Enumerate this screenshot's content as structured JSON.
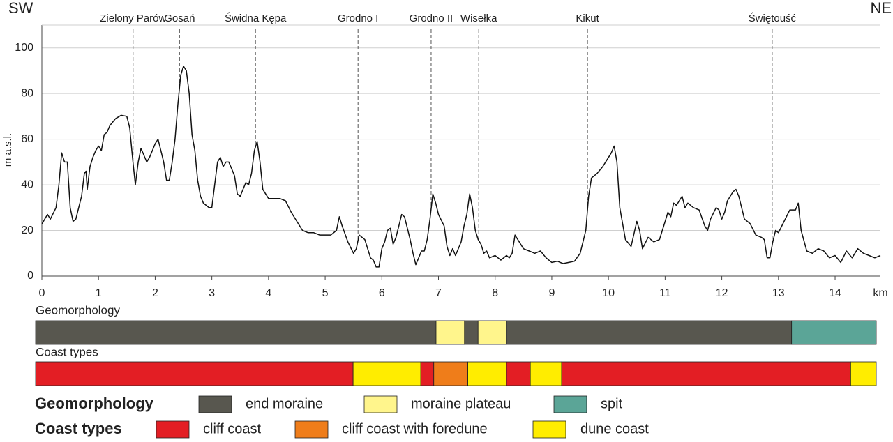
{
  "chart_data": {
    "type": "line",
    "corner_left": "SW",
    "corner_right": "NE",
    "y_label": "m a.s.l.",
    "x_label": "km",
    "xlim": [
      0,
      14.8
    ],
    "ylim": [
      0,
      110
    ],
    "xticks": [
      0,
      1,
      2,
      3,
      4,
      5,
      6,
      7,
      8,
      9,
      10,
      11,
      12,
      13,
      14
    ],
    "yticks": [
      0,
      20,
      40,
      60,
      80,
      100
    ],
    "grid": true,
    "color": "#111111",
    "x": [
      0,
      0.05,
      0.1,
      0.15,
      0.25,
      0.3,
      0.35,
      0.4,
      0.45,
      0.5,
      0.55,
      0.6,
      0.7,
      0.75,
      0.78,
      0.8,
      0.85,
      0.9,
      0.95,
      1.0,
      1.05,
      1.1,
      1.15,
      1.2,
      1.3,
      1.4,
      1.5,
      1.55,
      1.6,
      1.65,
      1.7,
      1.75,
      1.8,
      1.85,
      1.9,
      1.95,
      2.0,
      2.05,
      2.1,
      2.15,
      2.2,
      2.25,
      2.3,
      2.35,
      2.4,
      2.45,
      2.5,
      2.55,
      2.6,
      2.65,
      2.7,
      2.75,
      2.8,
      2.85,
      2.9,
      2.95,
      3.0,
      3.05,
      3.1,
      3.15,
      3.2,
      3.25,
      3.3,
      3.35,
      3.4,
      3.45,
      3.5,
      3.55,
      3.6,
      3.65,
      3.7,
      3.75,
      3.8,
      3.85,
      3.9,
      3.95,
      4.0,
      4.1,
      4.2,
      4.3,
      4.4,
      4.5,
      4.6,
      4.7,
      4.8,
      4.9,
      5.0,
      5.1,
      5.2,
      5.25,
      5.3,
      5.4,
      5.5,
      5.55,
      5.6,
      5.7,
      5.8,
      5.85,
      5.9,
      5.95,
      6.0,
      6.05,
      6.1,
      6.15,
      6.2,
      6.25,
      6.3,
      6.35,
      6.4,
      6.5,
      6.55,
      6.6,
      6.65,
      6.7,
      6.75,
      6.8,
      6.85,
      6.9,
      6.95,
      7.0,
      7.1,
      7.15,
      7.2,
      7.25,
      7.3,
      7.4,
      7.45,
      7.5,
      7.55,
      7.6,
      7.65,
      7.7,
      7.75,
      7.8,
      7.85,
      7.9,
      8.0,
      8.1,
      8.2,
      8.25,
      8.3,
      8.35,
      8.4,
      8.5,
      8.6,
      8.7,
      8.8,
      8.9,
      9.0,
      9.1,
      9.15,
      9.2,
      9.3,
      9.4,
      9.5,
      9.6,
      9.65,
      9.7,
      9.8,
      9.9,
      10.0,
      10.05,
      10.1,
      10.15,
      10.2,
      10.3,
      10.4,
      10.5,
      10.55,
      10.6,
      10.7,
      10.8,
      10.9,
      11.0,
      11.05,
      11.1,
      11.15,
      11.2,
      11.3,
      11.35,
      11.4,
      11.5,
      11.6,
      11.7,
      11.75,
      11.8,
      11.9,
      11.95,
      12.0,
      12.05,
      12.1,
      12.2,
      12.25,
      12.3,
      12.4,
      12.5,
      12.6,
      12.7,
      12.75,
      12.8,
      12.85,
      12.9,
      12.95,
      13.0,
      13.1,
      13.2,
      13.3,
      13.35,
      13.4,
      13.5,
      13.6,
      13.7,
      13.8,
      13.9,
      14.0,
      14.1,
      14.2,
      14.3,
      14.4,
      14.5,
      14.6,
      14.7,
      14.8
    ],
    "values": [
      22.7,
      25,
      27,
      25,
      30,
      40,
      54,
      50,
      50,
      30,
      24,
      25,
      35,
      45,
      46,
      38,
      48,
      52,
      55,
      57,
      55,
      62,
      63,
      66,
      69,
      70.5,
      70,
      65,
      52,
      40,
      50,
      56,
      53,
      50,
      52,
      55,
      58,
      60,
      55,
      50,
      42,
      42,
      50,
      60,
      75,
      88,
      92,
      90,
      80,
      62,
      55,
      42,
      35,
      32,
      31,
      30,
      30,
      40,
      50,
      52,
      48,
      50,
      50,
      47,
      44,
      36,
      35,
      38,
      41,
      40,
      45,
      55,
      59,
      50,
      38,
      36,
      34,
      34,
      34,
      33,
      28,
      24,
      20,
      19,
      19,
      18,
      18,
      18,
      20,
      26,
      22,
      15,
      10,
      12,
      18,
      16,
      8,
      7,
      4,
      4,
      12,
      15,
      20,
      21,
      14,
      17,
      22,
      27,
      26,
      16,
      10,
      5,
      8,
      11,
      11,
      16,
      25,
      36,
      32,
      27,
      22,
      13,
      9,
      12,
      9,
      15,
      22,
      27,
      36,
      30,
      20,
      16,
      14,
      10,
      11,
      8,
      9,
      7,
      9,
      8,
      10,
      18,
      16,
      12,
      11,
      10,
      11,
      8,
      6,
      6.5,
      6,
      5.5,
      6,
      6.5,
      10,
      20,
      35,
      43,
      45,
      48,
      52,
      54,
      57,
      50,
      30,
      16,
      13,
      24,
      20,
      12,
      17,
      15,
      16,
      24,
      28,
      26,
      32,
      31,
      35,
      30,
      32,
      30,
      29,
      22,
      20,
      25,
      30,
      29,
      25,
      28,
      33,
      37,
      38,
      35,
      25,
      23,
      18,
      17,
      16,
      8,
      8,
      15,
      20,
      19,
      24,
      29,
      29,
      32,
      20,
      11,
      10,
      12,
      11,
      8,
      9,
      6,
      11,
      8,
      12,
      10,
      9,
      8,
      9
    ],
    "annotations": [
      {
        "label": "Zielony Parów",
        "x": 1.61
      },
      {
        "label": "Gosań",
        "x": 2.43
      },
      {
        "label": "Świdna Kępa",
        "x": 3.77
      },
      {
        "label": "Grodno I",
        "x": 5.58
      },
      {
        "label": "Grodno II",
        "x": 6.87
      },
      {
        "label": "Wisełka",
        "x": 7.71
      },
      {
        "label": "Kikut",
        "x": 9.63
      },
      {
        "label": "Świętouść",
        "x": 12.89
      }
    ],
    "bands": [
      {
        "title": "Geomorphology",
        "legend_title": "Geomorphology",
        "classes": [
          {
            "name": "end moraine",
            "color": "#58574f",
            "segments": [
              [
                0,
                7.05
              ],
              [
                7.55,
                7.79
              ],
              [
                8.29,
                13.31
              ]
            ]
          },
          {
            "name": "moraine plateau",
            "color": "#fff58c",
            "segments": [
              [
                7.05,
                7.55
              ],
              [
                7.79,
                8.29
              ]
            ]
          },
          {
            "name": "spit",
            "color": "#5ba597",
            "segments": [
              [
                13.31,
                14.8
              ]
            ]
          }
        ]
      },
      {
        "title": "Coast types",
        "legend_title": "Coast types",
        "classes": [
          {
            "name": "cliff coast",
            "color": "#e31e24",
            "segments": [
              [
                0,
                5.59
              ],
              [
                6.78,
                7.01
              ],
              [
                8.29,
                8.71
              ],
              [
                9.26,
                14.35
              ]
            ]
          },
          {
            "name": "cliff coast with foredune",
            "color": "#ef7d1a",
            "segments": [
              [
                7.01,
                7.61
              ]
            ]
          },
          {
            "name": "dune coast",
            "color": "#ffed00",
            "segments": [
              [
                5.59,
                6.78
              ],
              [
                7.61,
                8.29
              ],
              [
                8.71,
                9.26
              ],
              [
                14.35,
                14.8
              ]
            ]
          }
        ]
      }
    ]
  }
}
